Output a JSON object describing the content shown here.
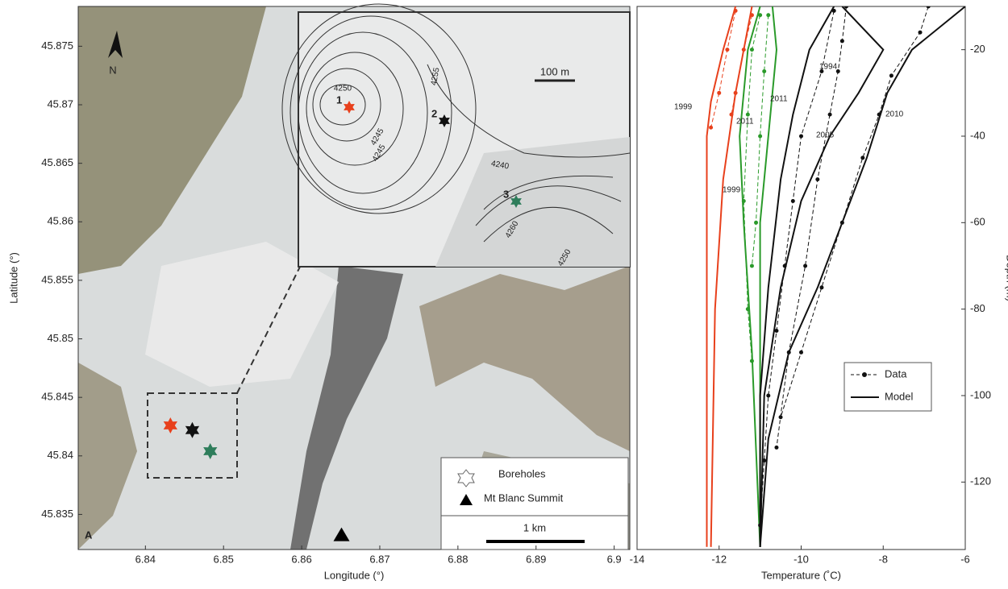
{
  "chart_data": [
    {
      "type": "map",
      "panel": "A",
      "xlabel": "Longitude (°)",
      "ylabel": "Latitude (°)",
      "xlim": [
        6.8314,
        6.902
      ],
      "ylim": [
        45.832,
        45.8784
      ],
      "xticks": [
        6.84,
        6.85,
        6.86,
        6.87,
        6.88,
        6.89,
        6.9
      ],
      "yticks": [
        45.835,
        45.84,
        45.845,
        45.85,
        45.855,
        45.86,
        45.865,
        45.87,
        45.875
      ],
      "points": [
        {
          "lon": 6.8432,
          "lat": 45.8426,
          "color": "#e8401c",
          "label": "1"
        },
        {
          "lon": 6.846,
          "lat": 45.8422,
          "color": "#111111",
          "label": "2"
        },
        {
          "lon": 6.8483,
          "lat": 45.8404,
          "color": "#2e7d5b",
          "label": "3"
        }
      ],
      "summit": {
        "lon": 6.8651,
        "lat": 45.8332
      },
      "legend": [
        "Boreholes",
        "Mt Blanc Summit"
      ],
      "scale_bar": "1 km",
      "north": "N",
      "inset": {
        "scale_bar": "100 m",
        "contour_labels": [
          "4250",
          "4245",
          "4240",
          "4255",
          "4260",
          "4245",
          "4250"
        ]
      }
    },
    {
      "type": "profile",
      "panel": "B",
      "xlabel": "Temperature (˚C)",
      "ylabel": "Depth (m)",
      "xlim": [
        -14,
        -6
      ],
      "ylim": [
        -135.6,
        -10
      ],
      "xticks": [
        -14,
        -12,
        -10,
        -8,
        -6
      ],
      "yticks": [
        -120,
        -100,
        -80,
        -60,
        -40,
        -20
      ],
      "legend": {
        "position": "right",
        "entries": [
          "Data",
          "Model"
        ]
      },
      "series": [
        {
          "label": "1999",
          "color": "#e8401c",
          "model": {
            "x": [
              -11.6,
              -11.9,
              -12.2,
              -12.3,
              -12.3,
              -12.3
            ],
            "y": [
              -10,
              -20,
              -32,
              -40,
              -80,
              -135
            ]
          },
          "data": {
            "x": [
              -11.6,
              -11.8,
              -12.0,
              -12.2
            ],
            "y": [
              -11,
              -20,
              -30,
              -38
            ]
          }
        },
        {
          "label": "2011",
          "color": "#e8401c",
          "model": {
            "x": [
              -11.2,
              -11.4,
              -11.6,
              -11.9,
              -12.1,
              -12.2
            ],
            "y": [
              -10,
              -20,
              -30,
              -50,
              -80,
              -135
            ]
          },
          "data": {
            "x": [
              -11.2,
              -11.4,
              -11.6,
              -11.7
            ],
            "y": [
              -12,
              -20,
              -30,
              -35
            ]
          }
        },
        {
          "label": "2011",
          "color": "#2a9a2a",
          "model": {
            "x": [
              -10.7,
              -10.6,
              -10.8,
              -11.0,
              -11.0,
              -11.0
            ],
            "y": [
              -10,
              -20,
              -40,
              -60,
              -90,
              -135
            ]
          },
          "data": {
            "x": [
              -10.8,
              -10.9,
              -11.0,
              -11.1,
              -11.2
            ],
            "y": [
              -12,
              -25,
              -40,
              -60,
              -70
            ]
          }
        },
        {
          "label": "1999",
          "color": "#2a9a2a",
          "model": {
            "x": [
              -11.0,
              -11.3,
              -11.5,
              -11.4,
              -11.2,
              -11.0
            ],
            "y": [
              -10,
              -20,
              -40,
              -60,
              -90,
              -135
            ]
          },
          "data": {
            "x": [
              -11.0,
              -11.2,
              -11.3,
              -11.4,
              -11.3,
              -11.2
            ],
            "y": [
              -12,
              -20,
              -35,
              -55,
              -80,
              -92
            ]
          }
        },
        {
          "label": "1994",
          "color": "#111111",
          "model": {
            "x": [
              -9.0,
              -8.0,
              -8.6,
              -9.3,
              -10.0,
              -10.5,
              -10.9,
              -11.0
            ],
            "y": [
              -10,
              -20,
              -30,
              -40,
              -55,
              -75,
              -100,
              -135
            ]
          },
          "data": {
            "x": [
              -8.9,
              -9.0,
              -9.1,
              -9.3,
              -9.6,
              -9.9,
              -10.3,
              -10.6
            ],
            "y": [
              -10,
              -18,
              -25,
              -35,
              -50,
              -70,
              -90,
              -112
            ]
          }
        },
        {
          "label": "2005",
          "color": "#111111",
          "model": {
            "x": [
              -9.2,
              -9.8,
              -10.2,
              -10.5,
              -10.8,
              -11.0,
              -11.0
            ],
            "y": [
              -10,
              -20,
              -35,
              -50,
              -75,
              -100,
              -135
            ]
          },
          "data": {
            "x": [
              -9.2,
              -9.5,
              -10.0,
              -10.2,
              -10.4,
              -10.6,
              -10.8,
              -10.9,
              -11.0
            ],
            "y": [
              -11,
              -25,
              -40,
              -55,
              -70,
              -85,
              -100,
              -115,
              -130
            ]
          }
        },
        {
          "label": "2010",
          "color": "#111111",
          "model": {
            "x": [
              -6.0,
              -7.3,
              -7.9,
              -8.4,
              -9.0,
              -9.6,
              -10.3,
              -10.8,
              -11.0
            ],
            "y": [
              -10,
              -20,
              -30,
              -45,
              -60,
              -75,
              -90,
              -110,
              -135
            ]
          },
          "data": {
            "x": [
              -6.9,
              -7.1,
              -7.8,
              -8.1,
              -8.5,
              -9.0,
              -9.5,
              -10.0,
              -10.5
            ],
            "y": [
              -10,
              -16,
              -26,
              -35,
              -45,
              -60,
              -75,
              -90,
              -105
            ]
          }
        }
      ]
    }
  ]
}
